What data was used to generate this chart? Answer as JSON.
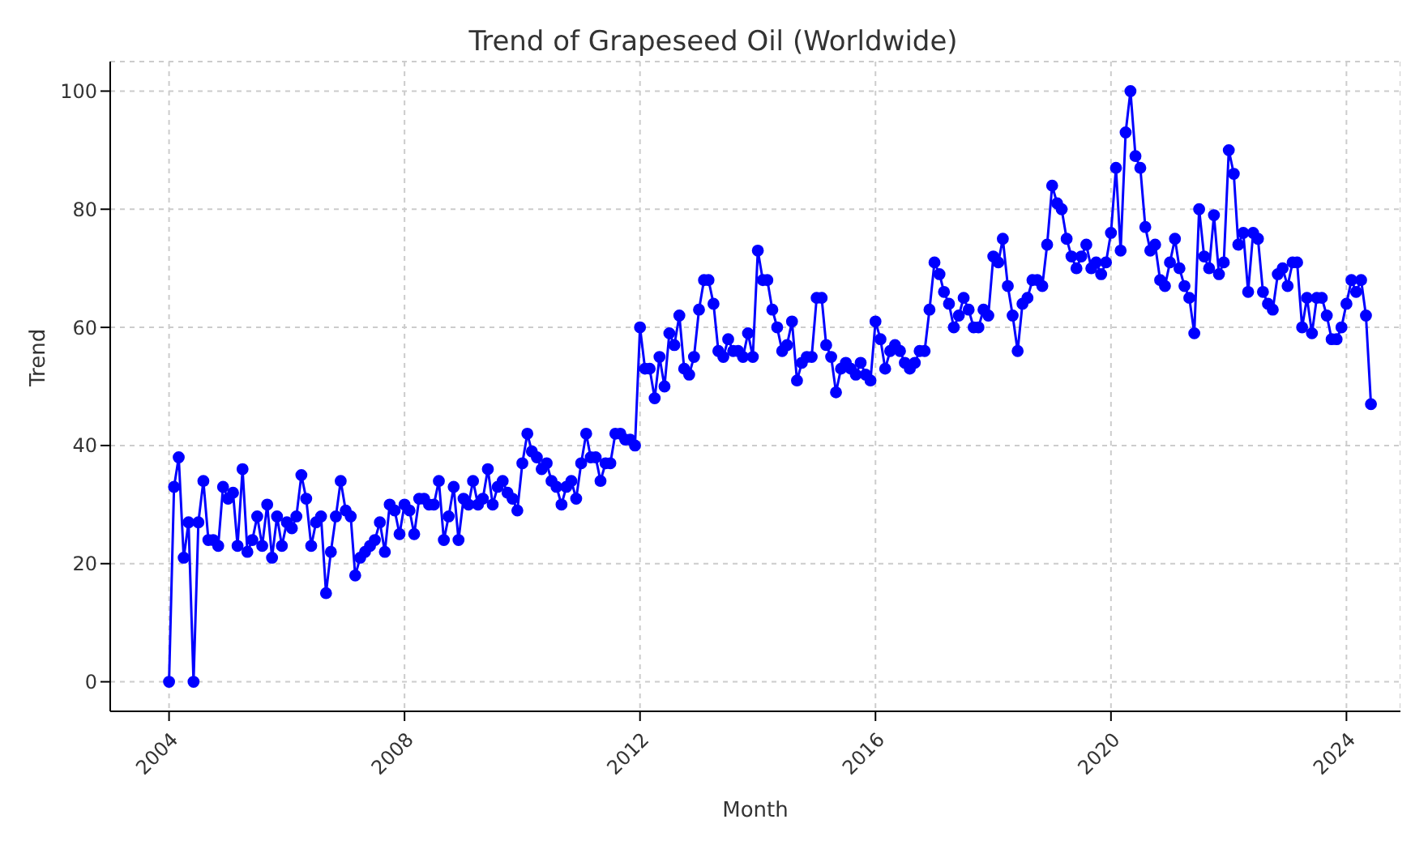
{
  "chart_data": {
    "type": "line",
    "title": "Trend of Grapeseed Oil (Worldwide)",
    "xlabel": "Month",
    "ylabel": "Trend",
    "x": [
      "2004-01",
      "2004-02",
      "2004-03",
      "2004-04",
      "2004-05",
      "2004-06",
      "2004-07",
      "2004-08",
      "2004-09",
      "2004-10",
      "2004-11",
      "2004-12",
      "2005-01",
      "2005-02",
      "2005-03",
      "2005-04",
      "2005-05",
      "2005-06",
      "2005-07",
      "2005-08",
      "2005-09",
      "2005-10",
      "2005-11",
      "2005-12",
      "2006-01",
      "2006-02",
      "2006-03",
      "2006-04",
      "2006-05",
      "2006-06",
      "2006-07",
      "2006-08",
      "2006-09",
      "2006-10",
      "2006-11",
      "2006-12",
      "2007-01",
      "2007-02",
      "2007-03",
      "2007-04",
      "2007-05",
      "2007-06",
      "2007-07",
      "2007-08",
      "2007-09",
      "2007-10",
      "2007-11",
      "2007-12",
      "2008-01",
      "2008-02",
      "2008-03",
      "2008-04",
      "2008-05",
      "2008-06",
      "2008-07",
      "2008-08",
      "2008-09",
      "2008-10",
      "2008-11",
      "2008-12",
      "2009-01",
      "2009-02",
      "2009-03",
      "2009-04",
      "2009-05",
      "2009-06",
      "2009-07",
      "2009-08",
      "2009-09",
      "2009-10",
      "2009-11",
      "2009-12",
      "2010-01",
      "2010-02",
      "2010-03",
      "2010-04",
      "2010-05",
      "2010-06",
      "2010-07",
      "2010-08",
      "2010-09",
      "2010-10",
      "2010-11",
      "2010-12",
      "2011-01",
      "2011-02",
      "2011-03",
      "2011-04",
      "2011-05",
      "2011-06",
      "2011-07",
      "2011-08",
      "2011-09",
      "2011-10",
      "2011-11",
      "2011-12",
      "2012-01",
      "2012-02",
      "2012-03",
      "2012-04",
      "2012-05",
      "2012-06",
      "2012-07",
      "2012-08",
      "2012-09",
      "2012-10",
      "2012-11",
      "2012-12",
      "2013-01",
      "2013-02",
      "2013-03",
      "2013-04",
      "2013-05",
      "2013-06",
      "2013-07",
      "2013-08",
      "2013-09",
      "2013-10",
      "2013-11",
      "2013-12",
      "2014-01",
      "2014-02",
      "2014-03",
      "2014-04",
      "2014-05",
      "2014-06",
      "2014-07",
      "2014-08",
      "2014-09",
      "2014-10",
      "2014-11",
      "2014-12",
      "2015-01",
      "2015-02",
      "2015-03",
      "2015-04",
      "2015-05",
      "2015-06",
      "2015-07",
      "2015-08",
      "2015-09",
      "2015-10",
      "2015-11",
      "2015-12",
      "2016-01",
      "2016-02",
      "2016-03",
      "2016-04",
      "2016-05",
      "2016-06",
      "2016-07",
      "2016-08",
      "2016-09",
      "2016-10",
      "2016-11",
      "2016-12",
      "2017-01",
      "2017-02",
      "2017-03",
      "2017-04",
      "2017-05",
      "2017-06",
      "2017-07",
      "2017-08",
      "2017-09",
      "2017-10",
      "2017-11",
      "2017-12",
      "2018-01",
      "2018-02",
      "2018-03",
      "2018-04",
      "2018-05",
      "2018-06",
      "2018-07",
      "2018-08",
      "2018-09",
      "2018-10",
      "2018-11",
      "2018-12",
      "2019-01",
      "2019-02",
      "2019-03",
      "2019-04",
      "2019-05",
      "2019-06",
      "2019-07",
      "2019-08",
      "2019-09",
      "2019-10",
      "2019-11",
      "2019-12",
      "2020-01",
      "2020-02",
      "2020-03",
      "2020-04",
      "2020-05",
      "2020-06",
      "2020-07",
      "2020-08",
      "2020-09",
      "2020-10",
      "2020-11",
      "2020-12",
      "2021-01",
      "2021-02",
      "2021-03",
      "2021-04",
      "2021-05",
      "2021-06",
      "2021-07",
      "2021-08",
      "2021-09",
      "2021-10",
      "2021-11",
      "2021-12",
      "2022-01",
      "2022-02",
      "2022-03",
      "2022-04",
      "2022-05",
      "2022-06",
      "2022-07",
      "2022-08",
      "2022-09",
      "2022-10",
      "2022-11",
      "2022-12",
      "2023-01",
      "2023-02",
      "2023-03",
      "2023-04",
      "2023-05",
      "2023-06",
      "2023-07",
      "2023-08",
      "2023-09",
      "2023-10",
      "2023-11",
      "2023-12",
      "2024-01",
      "2024-02",
      "2024-03",
      "2024-04",
      "2024-05",
      "2024-06"
    ],
    "series": [
      {
        "color": "#0000ff",
        "values": [
          0,
          33,
          38,
          21,
          27,
          0,
          27,
          34,
          24,
          24,
          23,
          33,
          31,
          32,
          23,
          36,
          22,
          24,
          28,
          23,
          30,
          21,
          28,
          23,
          27,
          26,
          28,
          35,
          31,
          23,
          27,
          28,
          15,
          22,
          28,
          34,
          29,
          28,
          18,
          21,
          22,
          23,
          24,
          27,
          22,
          30,
          29,
          25,
          30,
          29,
          25,
          31,
          31,
          30,
          30,
          34,
          24,
          28,
          33,
          24,
          31,
          30,
          34,
          30,
          31,
          36,
          30,
          33,
          34,
          32,
          31,
          29,
          37,
          42,
          39,
          38,
          36,
          37,
          34,
          33,
          30,
          33,
          34,
          31,
          37,
          42,
          38,
          38,
          34,
          37,
          37,
          42,
          42,
          41,
          41,
          40,
          60,
          53,
          53,
          48,
          55,
          50,
          59,
          57,
          62,
          53,
          52,
          55,
          63,
          68,
          68,
          64,
          56,
          55,
          58,
          56,
          56,
          55,
          59,
          55,
          73,
          68,
          68,
          63,
          60,
          56,
          57,
          61,
          51,
          54,
          55,
          55,
          65,
          65,
          57,
          55,
          49,
          53,
          54,
          53,
          52,
          54,
          52,
          51,
          61,
          58,
          53,
          56,
          57,
          56,
          54,
          53,
          54,
          56,
          56,
          63,
          71,
          69,
          66,
          64,
          60,
          62,
          65,
          63,
          60,
          60,
          63,
          62,
          72,
          71,
          75,
          67,
          62,
          56,
          64,
          65,
          68,
          68,
          67,
          74,
          84,
          81,
          80,
          75,
          72,
          70,
          72,
          74,
          70,
          71,
          69,
          71,
          76,
          87,
          73,
          93,
          100,
          89,
          87,
          77,
          73,
          74,
          68,
          67,
          71,
          75,
          70,
          67,
          65,
          59,
          80,
          72,
          70,
          79,
          69,
          71,
          90,
          86,
          74,
          76,
          66,
          76,
          75,
          66,
          64,
          63,
          69,
          70,
          67,
          71,
          71,
          60,
          65,
          59,
          65,
          65,
          62,
          58,
          58,
          60,
          64,
          68,
          66,
          68,
          62,
          47
        ]
      }
    ],
    "xlim": [
      "2003-01",
      "2024-12"
    ],
    "xticks": [
      "2004",
      "2008",
      "2012",
      "2016",
      "2020",
      "2024"
    ],
    "ylim": [
      -5,
      105
    ],
    "yticks": [
      0,
      20,
      40,
      60,
      80,
      100
    ],
    "grid": true,
    "marker": "circle",
    "line_style": "solid"
  }
}
